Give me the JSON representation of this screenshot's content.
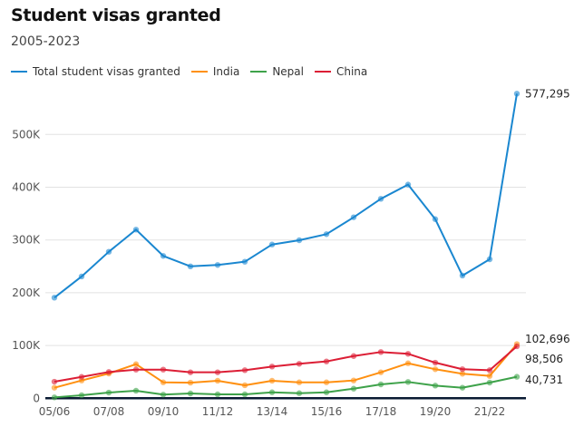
{
  "chart_data": {
    "type": "line",
    "title": "Student visas granted",
    "subtitle": "2005-2023",
    "xlabel": "",
    "ylabel": "",
    "x": [
      "05/06",
      "06/07",
      "07/08",
      "08/09",
      "09/10",
      "10/11",
      "11/12",
      "12/13",
      "13/14",
      "14/15",
      "15/16",
      "16/17",
      "17/18",
      "18/19",
      "19/20",
      "20/21",
      "21/22",
      "22/23"
    ],
    "x_tick_labels": [
      "05/06",
      "07/08",
      "09/10",
      "11/12",
      "13/14",
      "15/16",
      "17/18",
      "19/20",
      "21/22"
    ],
    "y_ticks": [
      0,
      100000,
      200000,
      300000,
      400000,
      500000
    ],
    "y_tick_labels": [
      "0",
      "100K",
      "200K",
      "300K",
      "400K",
      "500K"
    ],
    "ylim": [
      0,
      500000
    ],
    "grid": true,
    "legend_position": "top-left",
    "series": [
      {
        "name": "Total student visas granted",
        "color": "#1a87d0",
        "end_label": "577,295",
        "values": [
          190700,
          230800,
          277700,
          319600,
          269800,
          250000,
          252600,
          258800,
          291400,
          299500,
          311000,
          343000,
          378000,
          405000,
          339500,
          232500,
          263400,
          577295
        ]
      },
      {
        "name": "India",
        "color": "#ff9010",
        "end_label": "102,696",
        "values": [
          20000,
          33700,
          46900,
          64600,
          30200,
          29600,
          33200,
          24600,
          33200,
          30200,
          30200,
          33700,
          49200,
          66300,
          55000,
          46400,
          42300,
          102696
        ]
      },
      {
        "name": "Nepal",
        "color": "#3ea24a",
        "end_label": "40,731",
        "values": [
          1700,
          5700,
          10800,
          14300,
          6900,
          9100,
          7400,
          7400,
          11300,
          9600,
          11300,
          18200,
          26300,
          30900,
          24000,
          20000,
          29700,
          40731
        ]
      },
      {
        "name": "China",
        "color": "#dc1e35",
        "end_label": "98,506",
        "values": [
          31400,
          40500,
          49800,
          54300,
          54300,
          49200,
          49200,
          53200,
          60100,
          65300,
          69800,
          80000,
          87600,
          84200,
          67500,
          55000,
          53200,
          98506
        ]
      }
    ]
  }
}
